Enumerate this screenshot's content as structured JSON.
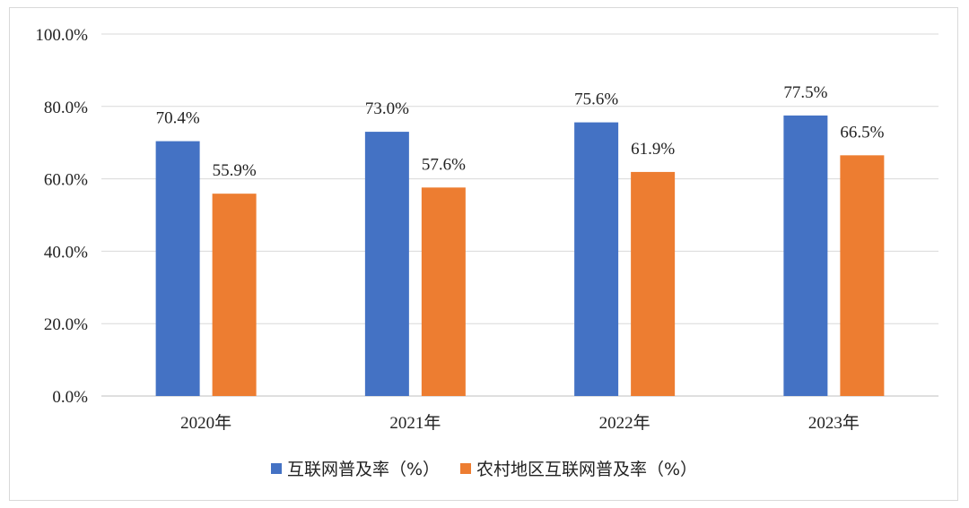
{
  "chart_data": {
    "type": "bar",
    "categories": [
      "2020年",
      "2021年",
      "2022年",
      "2023年"
    ],
    "series": [
      {
        "name": "互联网普及率（%）",
        "values": [
          70.4,
          73.0,
          75.6,
          77.5
        ],
        "labels": [
          "70.4%",
          "73.0%",
          "75.6%",
          "77.5%"
        ],
        "color": "#4472C4"
      },
      {
        "name": "农村地区互联网普及率（%）",
        "values": [
          55.9,
          57.6,
          61.9,
          66.5
        ],
        "labels": [
          "55.9%",
          "57.6%",
          "61.9%",
          "66.5%"
        ],
        "color": "#ED7D31"
      }
    ],
    "ylim": [
      0,
      100
    ],
    "yticks": [
      0,
      20,
      40,
      60,
      80,
      100
    ],
    "ytick_labels": [
      "0.0%",
      "20.0%",
      "40.0%",
      "60.0%",
      "80.0%",
      "100.0%"
    ],
    "grid": true,
    "gridline_color": "#d9d9d9",
    "legend_position": "bottom"
  }
}
